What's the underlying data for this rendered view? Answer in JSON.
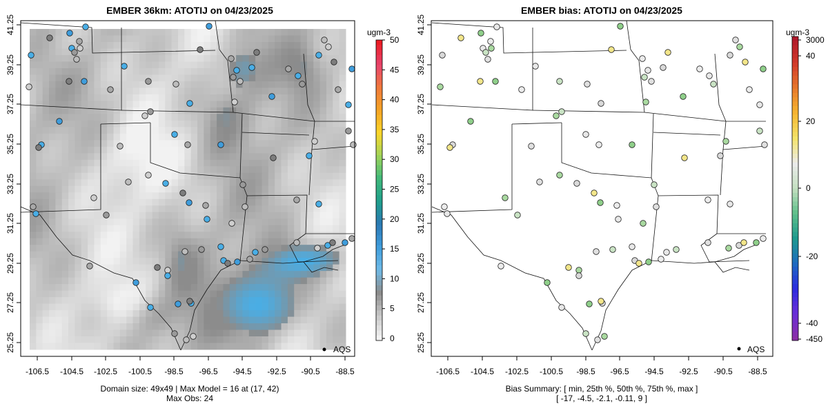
{
  "left": {
    "title": "EMBER 36km: ATOTIJ on 04/23/2025",
    "unit": "ugm-3",
    "colorbar_ticks": [
      "0",
      "5",
      "10",
      "15",
      "20",
      "25",
      "30",
      "35",
      "40",
      "45",
      "50"
    ],
    "legend_label": "AQS",
    "caption_line1": "Domain size: 49x49 | Max Model = 16 at (17, 42)",
    "caption_line2": "Max Obs: 24",
    "colors": {
      "low": "#f2f2f2",
      "mid": "#8c8c8c",
      "high": "#49aee6",
      "peak": "#1a6ab0"
    }
  },
  "right": {
    "title": "EMBER bias: ATOTIJ on 04/23/2025",
    "unit": "ugm-3",
    "colorbar_ticks": [
      "3000",
      "40",
      "20",
      "0",
      "-20",
      "-40",
      "-450"
    ],
    "legend_label": "AQS",
    "caption_line1": "Bias Summary: [ min, 25th %, 50th %, 75th %, max ]",
    "caption_line2": "[ -17,   -4.5,   -2.1,   -0.11,   9 ]"
  },
  "axes": {
    "x_ticks": [
      "-106.5",
      "-104.5",
      "-102.5",
      "-100.5",
      "-98.5",
      "-96.5",
      "-94.5",
      "-92.5",
      "-90.5",
      "-88.5"
    ],
    "y_ticks": [
      "25.25",
      "27.25",
      "29.25",
      "31.25",
      "33.25",
      "35.25",
      "37.25",
      "39.25",
      "41.25"
    ]
  }
}
